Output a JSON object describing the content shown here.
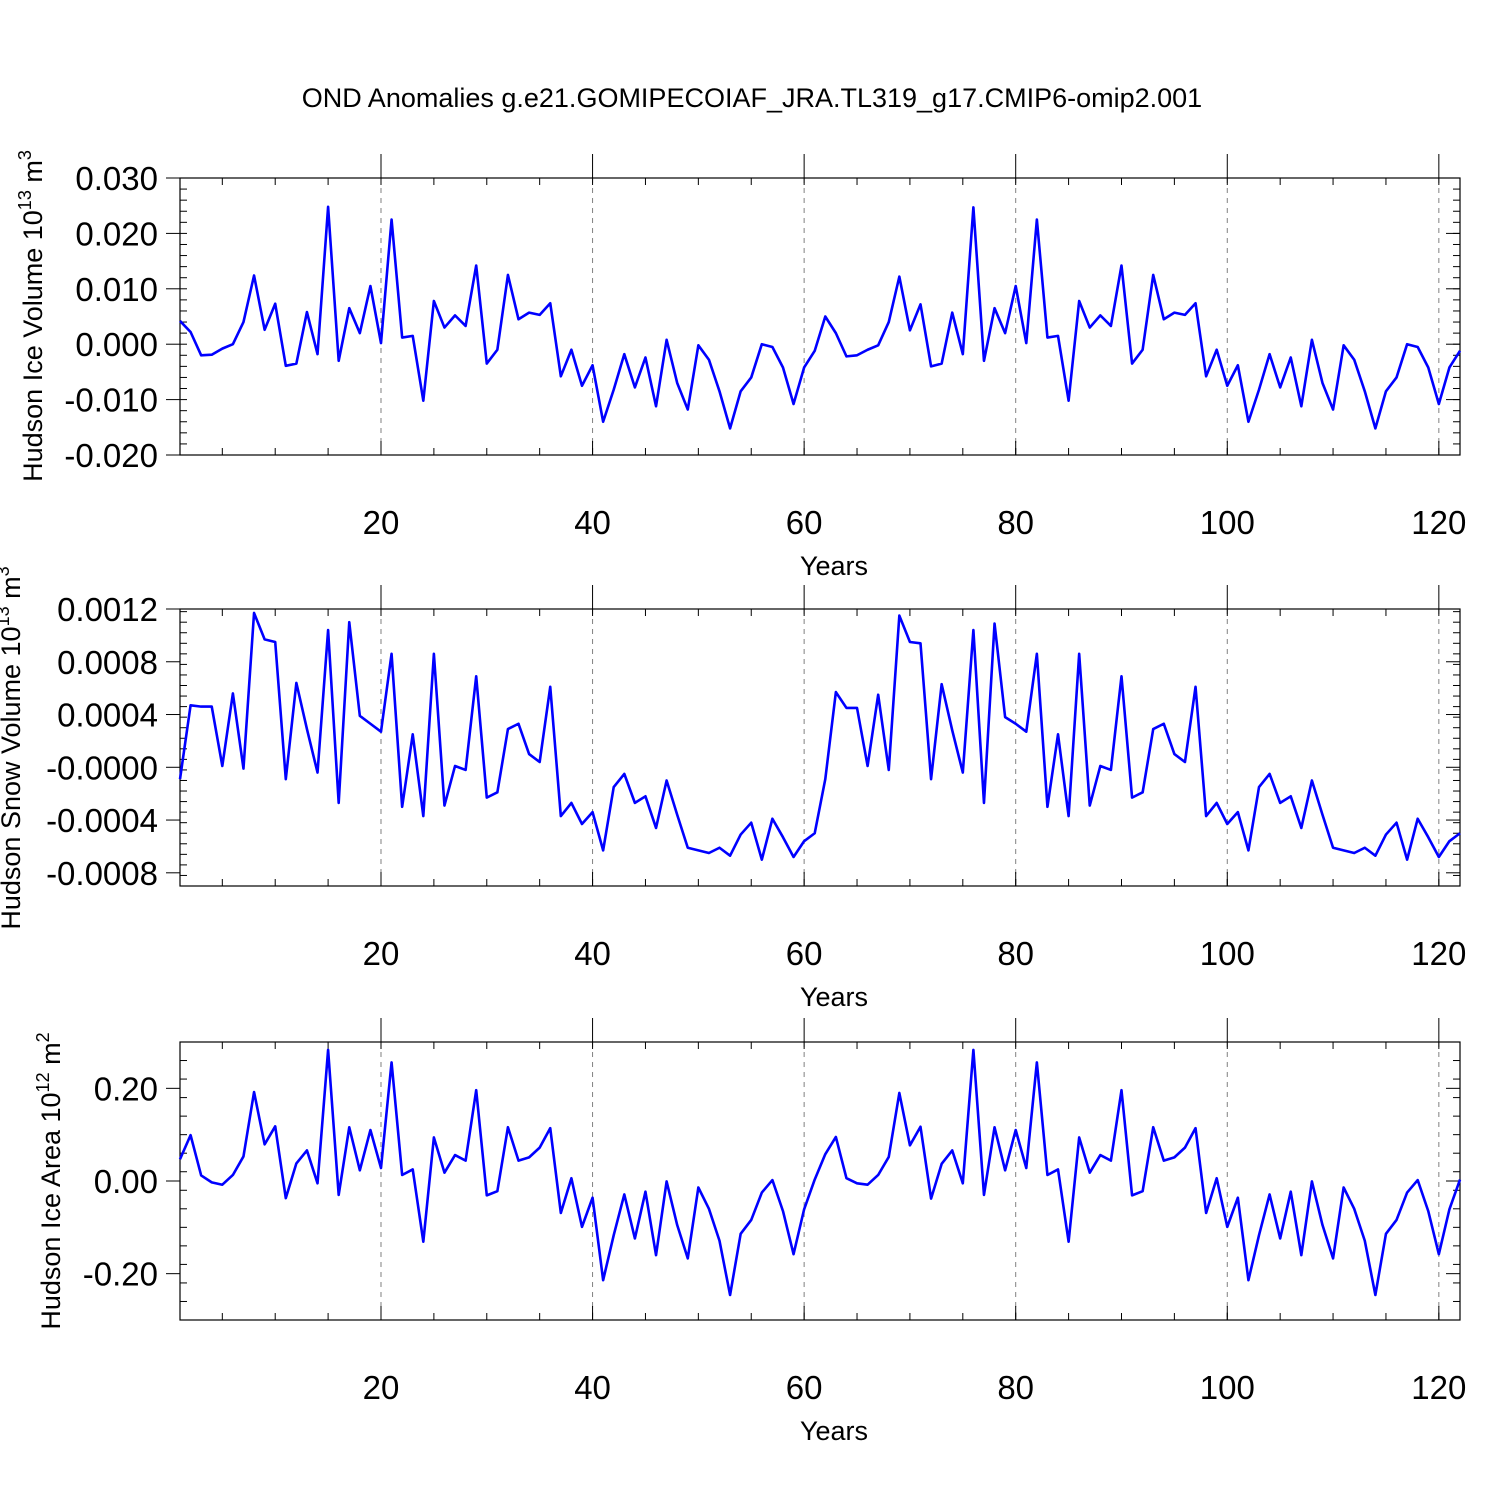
{
  "title": "OND Anomalies g.e21.GOMIPECOIAF_JRA.TL319_g17.CMIP6-omip2.001",
  "series_color": "#0000ff",
  "chart_data": [
    {
      "type": "line",
      "xlabel": "Years",
      "ylabel": "Hudson Ice Volume 10",
      "ylabel_exp": "13",
      "ylabel_unit": " m",
      "ylabel_unit_exp": "3",
      "xlim": [
        1,
        122
      ],
      "ylim": [
        -0.02,
        0.03
      ],
      "yticks": [
        -0.02,
        -0.01,
        0.0,
        0.01,
        0.02,
        0.03
      ],
      "yticklabels": [
        "-0.020",
        "-0.010",
        "0.000",
        "0.010",
        "0.020",
        "0.030"
      ],
      "xticks": [
        20,
        40,
        60,
        80,
        100,
        120
      ],
      "xticklabels": [
        "20",
        "40",
        "60",
        "80",
        "100",
        "120"
      ],
      "x_start": 1,
      "values": [
        0.0042,
        0.0022,
        -0.002,
        -0.0019,
        -0.0008,
        0.0,
        0.004,
        0.0124,
        0.0026,
        0.0073,
        -0.0039,
        -0.0035,
        0.0058,
        -0.0018,
        0.0248,
        -0.003,
        0.0065,
        0.002,
        0.0105,
        0.0002,
        0.0225,
        0.0012,
        0.0015,
        -0.0102,
        0.0078,
        0.003,
        0.0052,
        0.0033,
        0.0142,
        -0.0035,
        -0.001,
        0.0125,
        0.0045,
        0.0057,
        0.0053,
        0.0074,
        -0.0058,
        -0.001,
        -0.0075,
        -0.0038,
        -0.014,
        -0.0082,
        -0.0018,
        -0.0078,
        -0.0024,
        -0.0112,
        0.0008,
        -0.007,
        -0.0118,
        -0.0002,
        -0.0028,
        -0.0085,
        -0.0152,
        -0.0085,
        -0.006,
        0.0,
        -0.0005,
        -0.0042,
        -0.0108,
        -0.0042,
        -0.0012,
        0.005,
        0.002,
        -0.0022,
        -0.002,
        -0.001,
        -0.0002,
        0.004,
        0.0122,
        0.0025,
        0.0072,
        -0.004,
        -0.0035,
        0.0057,
        -0.0018,
        0.0247,
        -0.003,
        0.0065,
        0.002,
        0.0105,
        0.0002,
        0.0225,
        0.0012,
        0.0015,
        -0.0102,
        0.0078,
        0.003,
        0.0052,
        0.0033,
        0.0142,
        -0.0035,
        -0.001,
        0.0125,
        0.0045,
        0.0057,
        0.0053,
        0.0074,
        -0.0058,
        -0.001,
        -0.0075,
        -0.0038,
        -0.014,
        -0.0082,
        -0.0018,
        -0.0078,
        -0.0024,
        -0.0112,
        0.0008,
        -0.007,
        -0.0118,
        -0.0002,
        -0.0028,
        -0.0085,
        -0.0152,
        -0.0085,
        -0.006,
        0.0,
        -0.0005,
        -0.0042,
        -0.0108,
        -0.0042,
        -0.0012
      ]
    },
    {
      "type": "line",
      "xlabel": "Years",
      "ylabel": "Hudson Snow Volume 10",
      "ylabel_exp": "13",
      "ylabel_unit": " m",
      "ylabel_unit_exp": "3",
      "xlim": [
        1,
        122
      ],
      "ylim": [
        -0.0009,
        0.0012
      ],
      "yticks": [
        -0.0008,
        -0.0004,
        0.0,
        0.0004,
        0.0008,
        0.0012
      ],
      "yticklabels": [
        "-0.0008",
        "-0.0004",
        "-0.0000",
        "0.0004",
        "0.0008",
        "0.0012"
      ],
      "xticks": [
        20,
        40,
        60,
        80,
        100,
        120
      ],
      "xticklabels": [
        "20",
        "40",
        "60",
        "80",
        "100",
        "120"
      ],
      "x_start": 1,
      "values": [
        -9e-05,
        0.00047,
        0.00046,
        0.00046,
        1e-05,
        0.00056,
        -1e-05,
        0.00117,
        0.00097,
        0.00095,
        -9e-05,
        0.00064,
        0.00029,
        -4e-05,
        0.00104,
        -0.00027,
        0.0011,
        0.00039,
        0.00033,
        0.00027,
        0.00086,
        -0.0003,
        0.00025,
        -0.00037,
        0.00086,
        -0.00029,
        1e-05,
        -2e-05,
        0.00069,
        -0.00023,
        -0.00019,
        0.00029,
        0.00033,
        0.0001,
        4e-05,
        0.00061,
        -0.00037,
        -0.00027,
        -0.00043,
        -0.00034,
        -0.00063,
        -0.00015,
        -5e-05,
        -0.00027,
        -0.00022,
        -0.00046,
        -0.0001,
        -0.00036,
        -0.00061,
        -0.00063,
        -0.00065,
        -0.00061,
        -0.00067,
        -0.00051,
        -0.00042,
        -0.0007,
        -0.00039,
        -0.00053,
        -0.00068,
        -0.00056,
        -0.0005,
        -9e-05,
        0.00057,
        0.00045,
        0.00045,
        1e-05,
        0.00055,
        -2e-05,
        0.00115,
        0.00095,
        0.00094,
        -9e-05,
        0.00063,
        0.00028,
        -4e-05,
        0.00104,
        -0.00027,
        0.00109,
        0.00038,
        0.00033,
        0.00027,
        0.00086,
        -0.0003,
        0.00025,
        -0.00037,
        0.00086,
        -0.00029,
        1e-05,
        -2e-05,
        0.00069,
        -0.00023,
        -0.00019,
        0.00029,
        0.00033,
        0.0001,
        4e-05,
        0.00061,
        -0.00037,
        -0.00027,
        -0.00043,
        -0.00034,
        -0.00063,
        -0.00015,
        -5e-05,
        -0.00027,
        -0.00022,
        -0.00046,
        -0.0001,
        -0.00036,
        -0.00061,
        -0.00063,
        -0.00065,
        -0.00061,
        -0.00067,
        -0.00051,
        -0.00042,
        -0.0007,
        -0.00039,
        -0.00053,
        -0.00068,
        -0.00056,
        -0.0005
      ]
    },
    {
      "type": "line",
      "xlabel": "Years",
      "ylabel": "Hudson Ice Area 10",
      "ylabel_exp": "12",
      "ylabel_unit": " m",
      "ylabel_unit_exp": "2",
      "xlim": [
        1,
        122
      ],
      "ylim": [
        -0.3,
        0.3
      ],
      "yticks": [
        -0.2,
        0.0,
        0.2
      ],
      "yticklabels": [
        "-0.20",
        "0.00",
        "0.20"
      ],
      "xticks": [
        20,
        40,
        60,
        80,
        100,
        120
      ],
      "xticklabels": [
        "20",
        "40",
        "60",
        "80",
        "100",
        "120"
      ],
      "x_start": 1,
      "values": [
        0.047,
        0.099,
        0.012,
        -0.003,
        -0.008,
        0.013,
        0.053,
        0.192,
        0.079,
        0.118,
        -0.037,
        0.038,
        0.066,
        -0.005,
        0.283,
        -0.03,
        0.116,
        0.023,
        0.11,
        0.028,
        0.256,
        0.013,
        0.025,
        -0.131,
        0.094,
        0.018,
        0.056,
        0.044,
        0.196,
        -0.031,
        -0.022,
        0.116,
        0.044,
        0.051,
        0.072,
        0.114,
        -0.069,
        0.006,
        -0.099,
        -0.036,
        -0.214,
        -0.117,
        -0.029,
        -0.124,
        -0.023,
        -0.16,
        -0.001,
        -0.095,
        -0.167,
        -0.014,
        -0.06,
        -0.129,
        -0.246,
        -0.114,
        -0.084,
        -0.025,
        0.002,
        -0.065,
        -0.158,
        -0.061,
        0.003,
        0.058,
        0.095,
        0.006,
        -0.005,
        -0.008,
        0.013,
        0.052,
        0.19,
        0.077,
        0.117,
        -0.038,
        0.037,
        0.066,
        -0.005,
        0.283,
        -0.03,
        0.116,
        0.023,
        0.11,
        0.028,
        0.256,
        0.013,
        0.025,
        -0.131,
        0.094,
        0.018,
        0.056,
        0.044,
        0.196,
        -0.031,
        -0.022,
        0.116,
        0.044,
        0.051,
        0.072,
        0.114,
        -0.069,
        0.006,
        -0.099,
        -0.036,
        -0.214,
        -0.117,
        -0.029,
        -0.124,
        -0.023,
        -0.16,
        -0.001,
        -0.095,
        -0.167,
        -0.014,
        -0.06,
        -0.129,
        -0.246,
        -0.114,
        -0.084,
        -0.025,
        0.002,
        -0.065,
        -0.158,
        -0.061,
        0.003
      ]
    }
  ]
}
